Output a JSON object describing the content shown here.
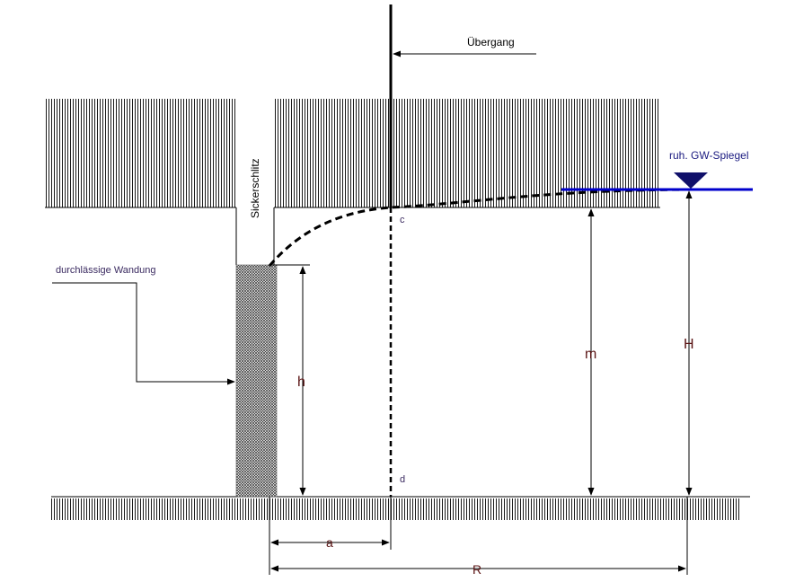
{
  "labels": {
    "uebergang": "Übergang",
    "sickerschlitz": "Sickerschlitz",
    "gw_spiegel": "ruh. GW-Spiegel",
    "wandung": "durchlässige Wandung",
    "point_c": "c",
    "point_d": "d",
    "dim_h": "h",
    "dim_m": "m",
    "dim_H": "H",
    "dim_a": "a",
    "dim_R": "R"
  },
  "colors": {
    "line": "#000000",
    "water": "#0000cc",
    "dim_text": "#5a1414",
    "triangle": "#10106a"
  }
}
